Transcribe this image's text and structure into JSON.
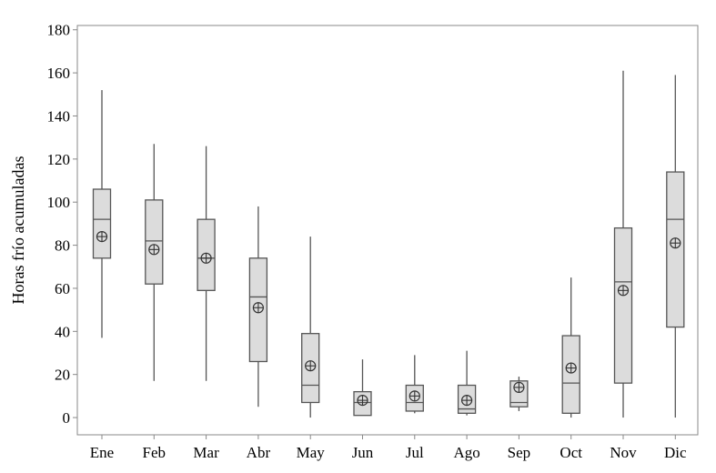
{
  "chart_data": {
    "type": "boxplot",
    "title": "",
    "xlabel": "",
    "ylabel": "Horas frío acumuladas",
    "ylim": [
      -8,
      182
    ],
    "yticks": [
      0,
      20,
      40,
      60,
      80,
      100,
      120,
      140,
      160,
      180
    ],
    "grid": false,
    "legend": "none",
    "colors": {
      "box_fill": "#dcdcdc",
      "stroke": "#555555",
      "frame": "#888888"
    },
    "categories": [
      "Ene",
      "Feb",
      "Mar",
      "Abr",
      "May",
      "Jun",
      "Jul",
      "Ago",
      "Sep",
      "Oct",
      "Nov",
      "Dic"
    ],
    "boxes": [
      {
        "min": 37,
        "q1": 74,
        "median": 92,
        "q3": 106,
        "max": 152,
        "mean": 84
      },
      {
        "min": 17,
        "q1": 62,
        "median": 82,
        "q3": 101,
        "max": 127,
        "mean": 78
      },
      {
        "min": 17,
        "q1": 59,
        "median": 74,
        "q3": 92,
        "max": 126,
        "mean": 74
      },
      {
        "min": 5,
        "q1": 26,
        "median": 56,
        "q3": 74,
        "max": 98,
        "mean": 51
      },
      {
        "min": 0,
        "q1": 7,
        "median": 15,
        "q3": 39,
        "max": 84,
        "mean": 24
      },
      {
        "min": 1,
        "q1": 1,
        "median": 7,
        "q3": 12,
        "max": 27,
        "mean": 8
      },
      {
        "min": 2,
        "q1": 3,
        "median": 7,
        "q3": 15,
        "max": 29,
        "mean": 10
      },
      {
        "min": 1,
        "q1": 2,
        "median": 4,
        "q3": 15,
        "max": 31,
        "mean": 8
      },
      {
        "min": 3,
        "q1": 5,
        "median": 7,
        "q3": 17,
        "max": 19,
        "mean": 14
      },
      {
        "min": 0,
        "q1": 2,
        "median": 16,
        "q3": 38,
        "max": 65,
        "mean": 23
      },
      {
        "min": 0,
        "q1": 16,
        "median": 63,
        "q3": 88,
        "max": 161,
        "mean": 59
      },
      {
        "min": 0,
        "q1": 42,
        "median": 92,
        "q3": 114,
        "max": 159,
        "mean": 81
      }
    ]
  }
}
